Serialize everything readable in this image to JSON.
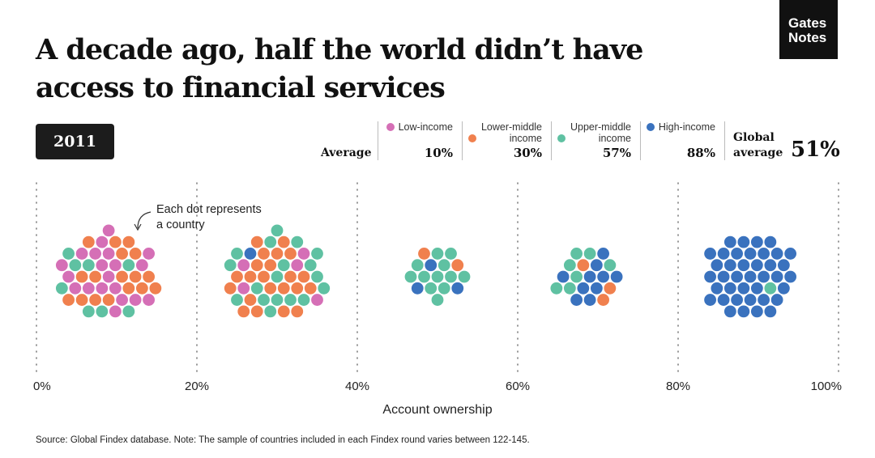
{
  "title": "A decade ago, half the world didn’t have access to financial services",
  "logo": {
    "line1": "Gates",
    "line2": "Notes"
  },
  "year": "2011",
  "summary": {
    "average_label": "Average",
    "global_label_1": "Global",
    "global_label_2": "average",
    "global_value": "51%"
  },
  "annotation": {
    "line1": "Each dot represents",
    "line2": "a country"
  },
  "source": "Source: Global Findex database. Note: The sample of countries included in each Findex round varies between 122-145.",
  "chart_data": {
    "type": "scatter",
    "title": "A decade ago, half the world didn’t have access to financial services",
    "xlabel": "Account ownership",
    "xlim": [
      0,
      100
    ],
    "xticks": [
      "0%",
      "20%",
      "40%",
      "60%",
      "80%",
      "100%"
    ],
    "grid": true,
    "legend_position": "top",
    "groups": [
      {
        "name": "Low-income",
        "color": "#d56fb6",
        "average": "10%"
      },
      {
        "name": "Lower-middle income",
        "color": "#f0804e",
        "average": "30%"
      },
      {
        "name": "Upper-middle income",
        "color": "#5fc1a2",
        "average": "57%"
      },
      {
        "name": "High-income",
        "color": "#3a72be",
        "average": "88%"
      }
    ],
    "bins": [
      {
        "range": "0-20%",
        "center": 9,
        "counts": [
          20,
          17,
          8,
          0
        ]
      },
      {
        "range": "20-40%",
        "center": 30,
        "counts": [
          5,
          22,
          18,
          1
        ]
      },
      {
        "range": "40-60%",
        "center": 50,
        "counts": [
          0,
          2,
          12,
          3
        ]
      },
      {
        "range": "60-80%",
        "center": 69,
        "counts": [
          0,
          3,
          7,
          10
        ]
      },
      {
        "range": "80-100%",
        "center": 89,
        "counts": [
          0,
          0,
          1,
          39
        ]
      }
    ]
  }
}
